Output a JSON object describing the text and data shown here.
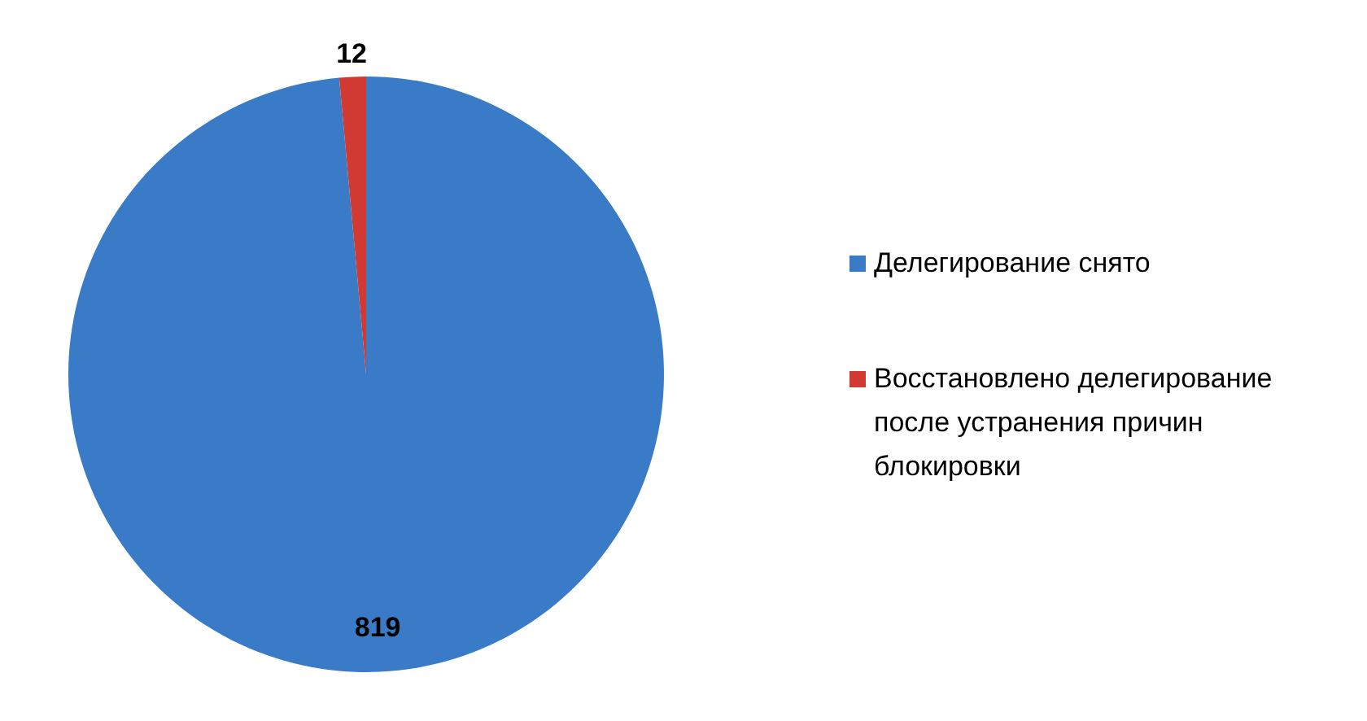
{
  "chart_data": {
    "type": "pie",
    "categories": [
      "Делегирование снято",
      "Восстановлено делегирование после устранения причин блокировки"
    ],
    "values": [
      819,
      12
    ],
    "colors": [
      "#3a7bc8",
      "#d03a33"
    ],
    "data_labels": true,
    "legend": "right"
  }
}
